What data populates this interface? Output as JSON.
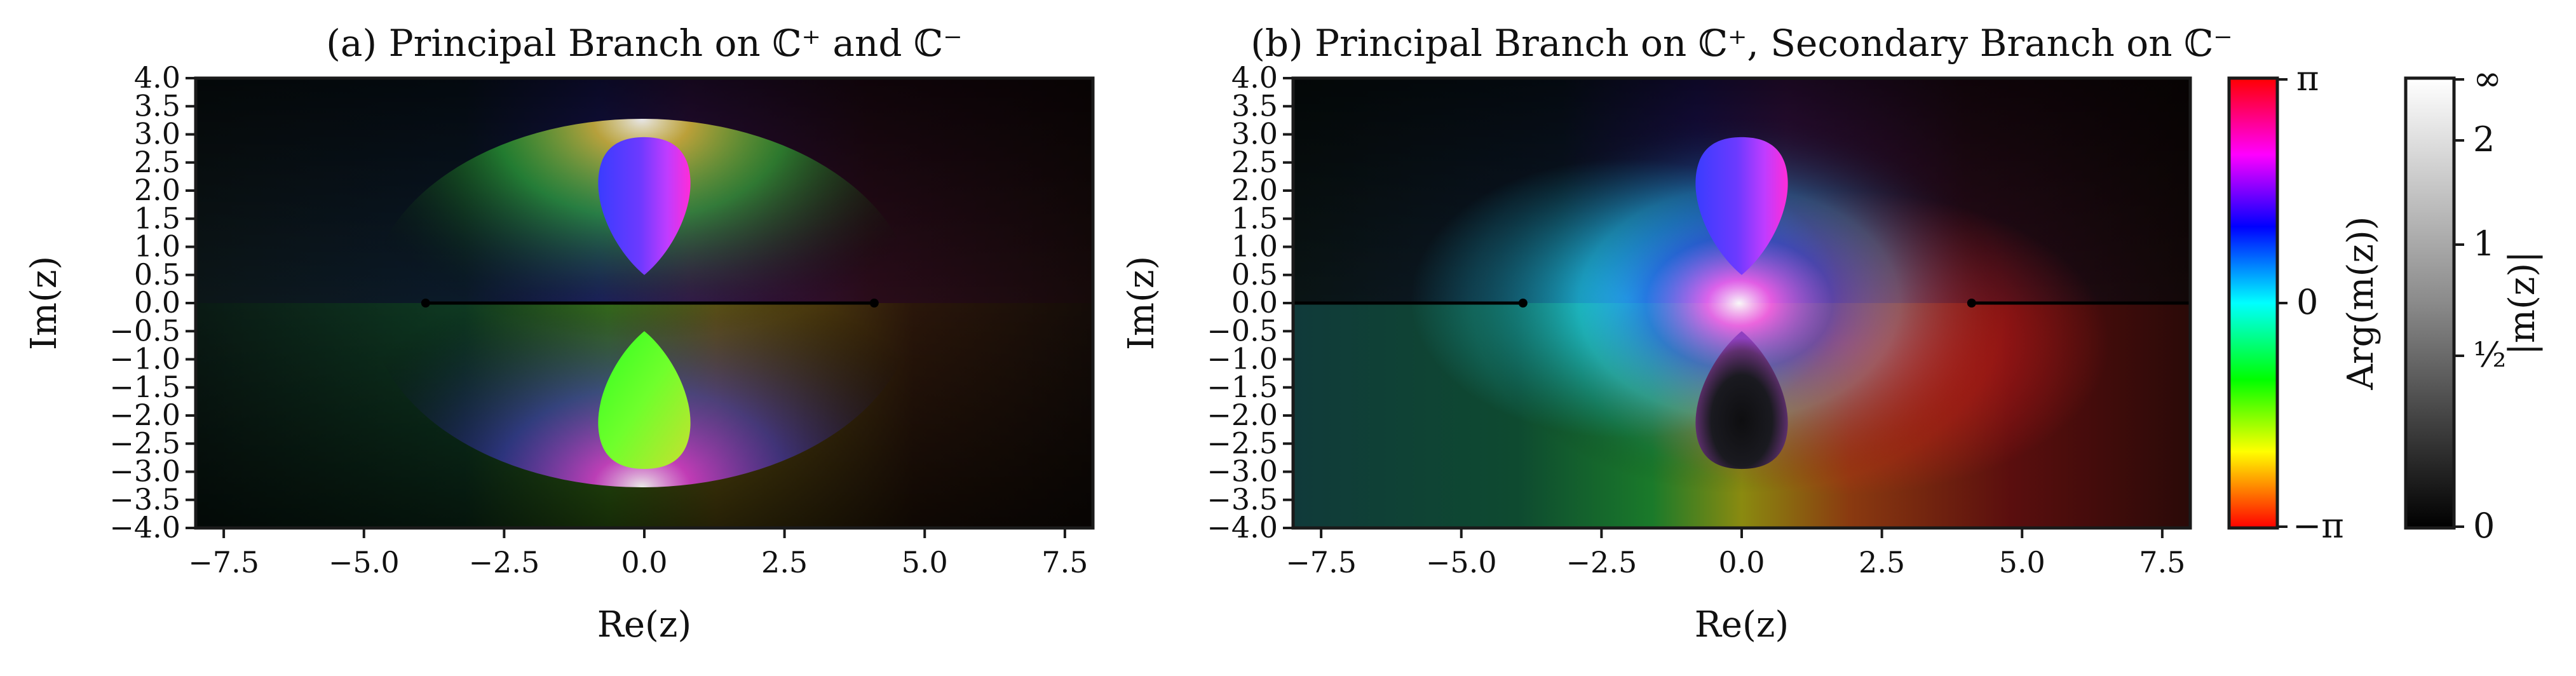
{
  "figure": {
    "panels": [
      {
        "id": "a",
        "title": "(a) Principal Branch on ℂ⁺ and ℂ⁻",
        "xlabel": "Re(z)",
        "ylabel": "Im(z)",
        "xticks": [
          "−7.5",
          "−5.0",
          "−2.5",
          "0.0",
          "2.5",
          "5.0",
          "7.5"
        ],
        "yticks": [
          "4.0",
          "3.5",
          "3.0",
          "2.5",
          "2.0",
          "1.5",
          "1.0",
          "0.5",
          "0.0",
          "−0.5",
          "−1.0",
          "−1.5",
          "−2.0",
          "−2.5",
          "−3.0",
          "−3.5",
          "−4.0"
        ]
      },
      {
        "id": "b",
        "title": "(b) Principal Branch on ℂ⁺, Secondary Branch on ℂ⁻",
        "xlabel": "Re(z)",
        "ylabel": "Im(z)",
        "xticks": [
          "−7.5",
          "−5.0",
          "−2.5",
          "0.0",
          "2.5",
          "5.0",
          "7.5"
        ],
        "yticks": [
          "4.0",
          "3.5",
          "3.0",
          "2.5",
          "2.0",
          "1.5",
          "1.0",
          "0.5",
          "0.0",
          "−0.5",
          "−1.0",
          "−1.5",
          "−2.0",
          "−2.5",
          "−3.0",
          "−3.5",
          "−4.0"
        ]
      }
    ],
    "colorbar_arg": {
      "label": "Arg(m(z))",
      "ticks": [
        "π",
        "0",
        "−π"
      ]
    },
    "colorbar_abs": {
      "label": "|m(z)|",
      "ticks": [
        "∞",
        "2",
        "1",
        "½",
        "0"
      ]
    }
  },
  "chart_data": [
    {
      "type": "heatmap",
      "title": "(a) Principal Branch on ℂ⁺ and ℂ⁻",
      "xlabel": "Re(z)",
      "ylabel": "Im(z)",
      "xlim": [
        -8,
        8
      ],
      "ylim": [
        -4,
        4
      ],
      "x_ticks": [
        -7.5,
        -5.0,
        -2.5,
        0.0,
        2.5,
        5.0,
        7.5
      ],
      "y_ticks": [
        4.0,
        3.5,
        3.0,
        2.5,
        2.0,
        1.5,
        1.0,
        0.5,
        0.0,
        -0.5,
        -1.0,
        -1.5,
        -2.0,
        -2.5,
        -3.0,
        -3.5,
        -4.0
      ],
      "branch_cuts": [
        {
          "x": [
            -3.9,
            4.1
          ],
          "y": [
            0,
            0
          ]
        }
      ],
      "lobes": [
        {
          "center": [
            0.0,
            1.75
          ],
          "extent_im": [
            0.5,
            2.95
          ],
          "half_width_re": 0.82
        },
        {
          "center": [
            0.0,
            -1.75
          ],
          "extent_im": [
            -2.95,
            -0.5
          ],
          "half_width_re": 0.82
        }
      ],
      "grid": false
    },
    {
      "type": "heatmap",
      "title": "(b) Principal Branch on ℂ⁺, Secondary Branch on ℂ⁻",
      "xlabel": "Re(z)",
      "ylabel": "Im(z)",
      "xlim": [
        -8,
        8
      ],
      "ylim": [
        -4,
        4
      ],
      "x_ticks": [
        -7.5,
        -5.0,
        -2.5,
        0.0,
        2.5,
        5.0,
        7.5
      ],
      "y_ticks": [
        4.0,
        3.5,
        3.0,
        2.5,
        2.0,
        1.5,
        1.0,
        0.5,
        0.0,
        -0.5,
        -1.0,
        -1.5,
        -2.0,
        -2.5,
        -3.0,
        -3.5,
        -4.0
      ],
      "branch_cuts": [
        {
          "x": [
            -8.0,
            -3.9
          ],
          "y": [
            0,
            0
          ]
        },
        {
          "x": [
            4.1,
            8.0
          ],
          "y": [
            0,
            0
          ]
        }
      ],
      "lobes": [
        {
          "center": [
            0.0,
            1.75
          ],
          "extent_im": [
            0.5,
            2.95
          ],
          "half_width_re": 0.82
        },
        {
          "center": [
            0.0,
            -1.75
          ],
          "extent_im": [
            -2.95,
            -0.5
          ],
          "half_width_re": 0.82
        }
      ],
      "grid": false
    }
  ]
}
